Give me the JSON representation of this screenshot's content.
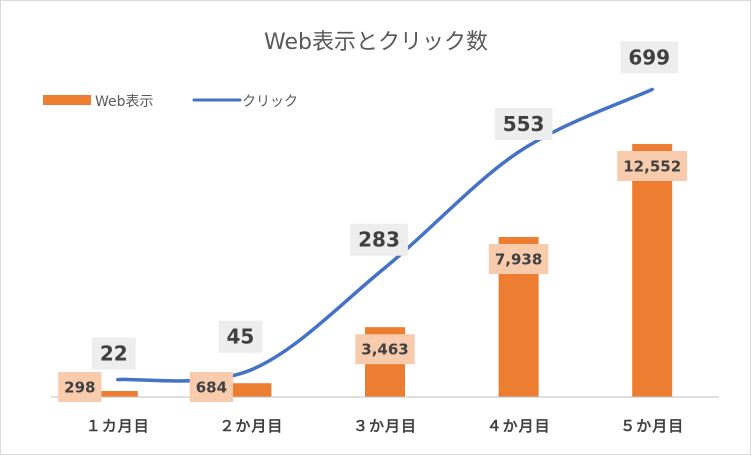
{
  "chart_data": {
    "type": "bar",
    "title": "Web表示とクリック数",
    "categories": [
      "１カ月目",
      "２か月目",
      "３か月目",
      "４か月目",
      "５か月目"
    ],
    "series": [
      {
        "name": "Web表示",
        "kind": "bar",
        "color": "#ed7d31",
        "values": [
          298,
          684,
          3463,
          7938,
          12552
        ],
        "labels": [
          "298",
          "684",
          "3,463",
          "7,938",
          "12,552"
        ],
        "label_bg": "#f8cbad"
      },
      {
        "name": "クリック",
        "kind": "line",
        "color": "#4472c4",
        "values": [
          22,
          45,
          283,
          553,
          699
        ],
        "labels": [
          "22",
          "45",
          "283",
          "553",
          "699"
        ],
        "label_bg": "#ededed"
      }
    ],
    "xlabel": "",
    "ylabel": "",
    "ylim_bar": [
      0,
      14000
    ],
    "ylim_line": [
      0,
      800
    ],
    "grid": false,
    "legend_position": "top-left",
    "axis_color": "#bfbfbf"
  }
}
